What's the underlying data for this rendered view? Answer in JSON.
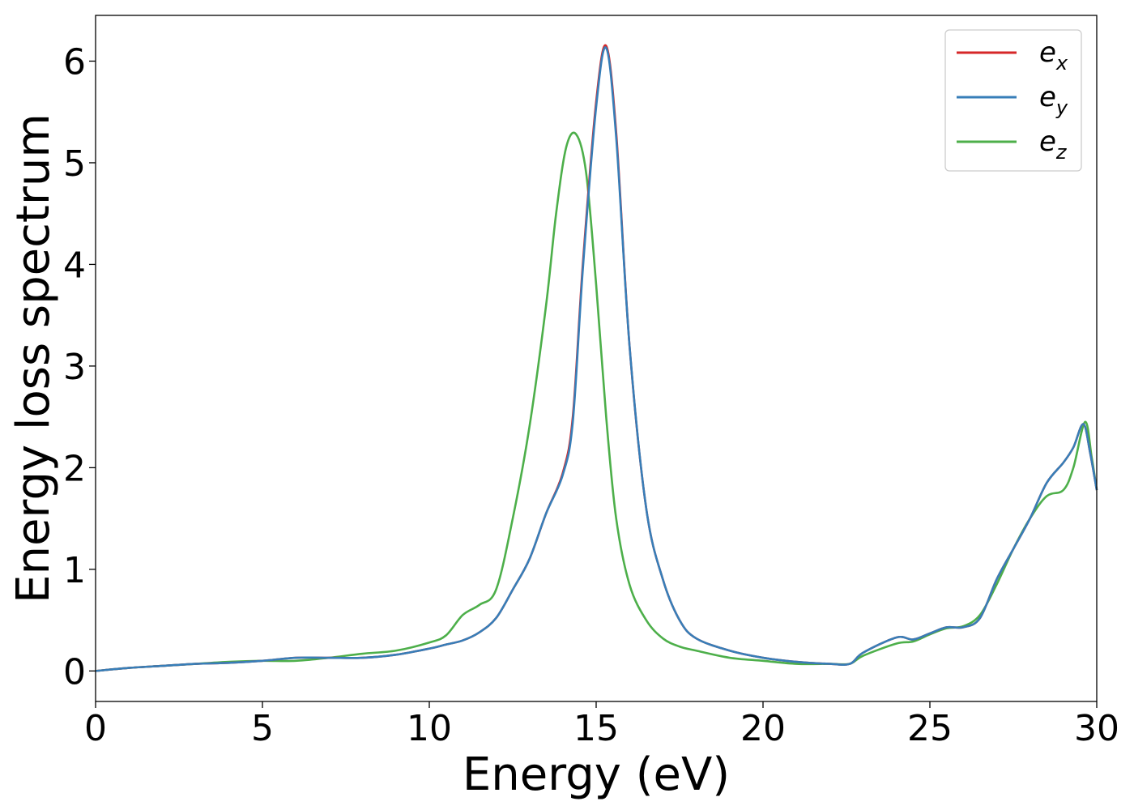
{
  "chart_data": {
    "type": "line",
    "title": "",
    "xlabel": "Energy (eV)",
    "ylabel": "Energy loss spectrum",
    "xlim": [
      0,
      30
    ],
    "ylim": [
      -0.3,
      6.45
    ],
    "xticks": [
      0,
      5,
      10,
      15,
      20,
      25,
      30
    ],
    "xtick_labels": [
      "0",
      "5",
      "10",
      "15",
      "20",
      "25",
      "30"
    ],
    "yticks": [
      0,
      1,
      2,
      3,
      4,
      5,
      6
    ],
    "ytick_labels": [
      "0",
      "1",
      "2",
      "3",
      "4",
      "5",
      "6"
    ],
    "grid": false,
    "legend_position": "top-right",
    "series": [
      {
        "name": "e_x",
        "base": "e",
        "sub": "x",
        "color": "#d62728",
        "x": [
          0,
          1,
          2,
          3,
          4,
          5,
          6,
          7,
          8,
          9,
          10,
          10.5,
          11,
          11.5,
          12,
          12.5,
          13,
          13.5,
          14,
          14.3,
          14.6,
          15,
          15.3,
          15.6,
          16,
          16.5,
          17,
          17.5,
          18,
          19,
          20,
          21,
          22,
          22.6,
          23,
          24,
          24.5,
          25,
          25.5,
          26,
          26.5,
          27,
          27.5,
          28,
          28.5,
          29,
          29.3,
          29.6,
          29.8,
          30
        ],
        "y": [
          0.0,
          0.03,
          0.05,
          0.07,
          0.08,
          0.1,
          0.13,
          0.13,
          0.13,
          0.16,
          0.22,
          0.26,
          0.3,
          0.38,
          0.52,
          0.8,
          1.1,
          1.55,
          1.95,
          2.5,
          4.0,
          5.6,
          6.15,
          5.3,
          3.2,
          1.6,
          0.9,
          0.5,
          0.32,
          0.2,
          0.13,
          0.09,
          0.07,
          0.07,
          0.18,
          0.33,
          0.31,
          0.37,
          0.43,
          0.43,
          0.52,
          0.9,
          1.2,
          1.5,
          1.85,
          2.05,
          2.2,
          2.43,
          2.15,
          1.78
        ]
      },
      {
        "name": "e_y",
        "base": "e",
        "sub": "y",
        "color": "#377eb8",
        "x": [
          0,
          1,
          2,
          3,
          4,
          5,
          6,
          7,
          8,
          9,
          10,
          10.5,
          11,
          11.5,
          12,
          12.5,
          13,
          13.5,
          14,
          14.3,
          14.6,
          15,
          15.3,
          15.6,
          16,
          16.5,
          17,
          17.5,
          18,
          19,
          20,
          21,
          22,
          22.6,
          23,
          24,
          24.5,
          25,
          25.5,
          26,
          26.5,
          27,
          27.5,
          28,
          28.5,
          29,
          29.3,
          29.6,
          29.8,
          30
        ],
        "y": [
          0.0,
          0.03,
          0.05,
          0.07,
          0.08,
          0.1,
          0.13,
          0.13,
          0.13,
          0.16,
          0.22,
          0.26,
          0.3,
          0.38,
          0.52,
          0.8,
          1.1,
          1.55,
          1.93,
          2.45,
          3.95,
          5.55,
          6.13,
          5.25,
          3.2,
          1.6,
          0.9,
          0.5,
          0.32,
          0.2,
          0.13,
          0.09,
          0.07,
          0.07,
          0.18,
          0.33,
          0.31,
          0.37,
          0.43,
          0.43,
          0.52,
          0.9,
          1.2,
          1.5,
          1.85,
          2.05,
          2.2,
          2.43,
          2.15,
          1.78
        ]
      },
      {
        "name": "e_z",
        "base": "e",
        "sub": "z",
        "color": "#4daf4a",
        "x": [
          0,
          1,
          2,
          3,
          4,
          5,
          6,
          7,
          8,
          9,
          10,
          10.5,
          11,
          11.5,
          12,
          12.5,
          13,
          13.5,
          13.8,
          14.1,
          14.4,
          14.7,
          15,
          15.3,
          15.6,
          16,
          16.5,
          17,
          17.5,
          18,
          19,
          20,
          21,
          22,
          22.6,
          23,
          24,
          24.5,
          25,
          25.5,
          26,
          26.5,
          27,
          27.5,
          28,
          28.5,
          29,
          29.3,
          29.65,
          29.85,
          30
        ],
        "y": [
          0.0,
          0.03,
          0.05,
          0.07,
          0.09,
          0.1,
          0.1,
          0.13,
          0.17,
          0.2,
          0.28,
          0.35,
          0.55,
          0.65,
          0.8,
          1.5,
          2.4,
          3.6,
          4.5,
          5.15,
          5.28,
          4.9,
          3.8,
          2.5,
          1.5,
          0.85,
          0.5,
          0.32,
          0.24,
          0.2,
          0.13,
          0.1,
          0.07,
          0.07,
          0.07,
          0.15,
          0.27,
          0.29,
          0.36,
          0.42,
          0.44,
          0.55,
          0.85,
          1.2,
          1.5,
          1.72,
          1.78,
          2.0,
          2.45,
          2.1,
          1.78
        ]
      }
    ]
  }
}
